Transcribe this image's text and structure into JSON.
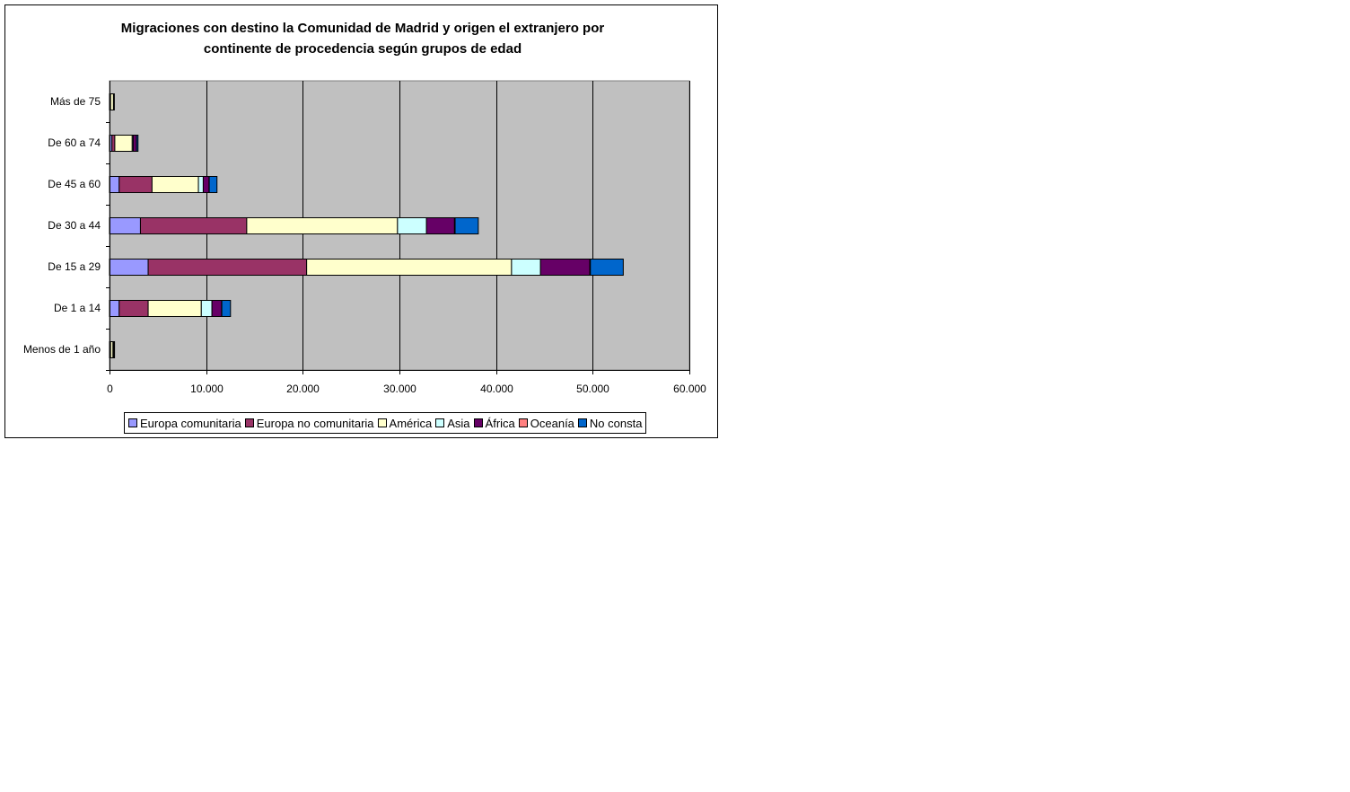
{
  "chart_data": {
    "type": "bar",
    "orientation": "horizontal",
    "stacked": true,
    "title_lines": [
      "Migraciones con destino la Comunidad de Madrid y origen el extranjero por",
      "continente de procedencia según grupos de edad"
    ],
    "categories": [
      "Menos de 1 año",
      "De 1 a 14",
      "De 15 a 29",
      "De 30 a 44",
      "De 45 a 60",
      "De 60 a 74",
      "Más de 75"
    ],
    "xlim": [
      0,
      60000
    ],
    "xticks": [
      0,
      10000,
      20000,
      30000,
      40000,
      50000,
      60000
    ],
    "xtick_labels": [
      "0",
      "10.000",
      "20.000",
      "30.000",
      "40.000",
      "50.000",
      "60.000"
    ],
    "grid": true,
    "plot_background": "#c0c0c0",
    "legend_position": "bottom",
    "series": [
      {
        "name": "Europa comunitaria",
        "color": "#9999ff",
        "values": [
          60,
          1000,
          4000,
          3200,
          1000,
          250,
          80
        ]
      },
      {
        "name": "Europa no comunitaria",
        "color": "#993366",
        "values": [
          50,
          3000,
          16400,
          11000,
          3400,
          300,
          30
        ]
      },
      {
        "name": "América",
        "color": "#ffffcc",
        "values": [
          250,
          5500,
          21200,
          15600,
          4800,
          1800,
          300
        ]
      },
      {
        "name": "Asia",
        "color": "#ccffff",
        "values": [
          30,
          1100,
          3000,
          3000,
          500,
          100,
          20
        ]
      },
      {
        "name": "África",
        "color": "#660066",
        "values": [
          60,
          1000,
          5100,
          2900,
          600,
          350,
          20
        ]
      },
      {
        "name": "Oceanía",
        "color": "#ff8080",
        "values": [
          0,
          20,
          60,
          60,
          20,
          0,
          0
        ]
      },
      {
        "name": "No consta",
        "color": "#0066cc",
        "values": [
          70,
          900,
          3400,
          2400,
          800,
          150,
          30
        ]
      }
    ]
  }
}
